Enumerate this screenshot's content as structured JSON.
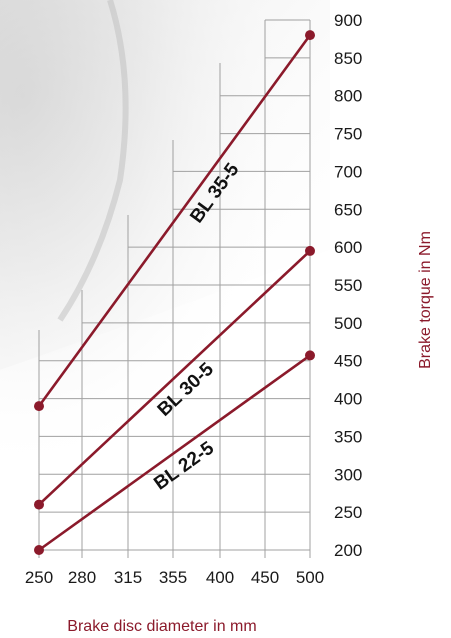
{
  "chart_data": {
    "type": "line",
    "xlabel": "Brake disc diameter in mm",
    "ylabel": "Brake torque in Nm",
    "x_ticks": [
      250,
      280,
      315,
      355,
      400,
      450,
      500
    ],
    "y_ticks": [
      200,
      250,
      300,
      350,
      400,
      450,
      500,
      550,
      600,
      650,
      700,
      750,
      800,
      850,
      900
    ],
    "xlim": [
      250,
      500
    ],
    "ylim": [
      190,
      910
    ],
    "grid": true,
    "series": [
      {
        "name": "BL 35-5",
        "points": [
          {
            "x": 250,
            "y": 390
          },
          {
            "x": 500,
            "y": 880
          }
        ]
      },
      {
        "name": "BL 30-5",
        "points": [
          {
            "x": 250,
            "y": 260
          },
          {
            "x": 500,
            "y": 595
          }
        ]
      },
      {
        "name": "BL 22-5",
        "points": [
          {
            "x": 250,
            "y": 200
          },
          {
            "x": 500,
            "y": 457
          }
        ]
      }
    ]
  },
  "colors": {
    "series_line": "#8b1a2b",
    "axis_title_x": "#8b1a2b",
    "axis_title_y": "#8b1a2b",
    "grid": "#a0a0a0"
  }
}
